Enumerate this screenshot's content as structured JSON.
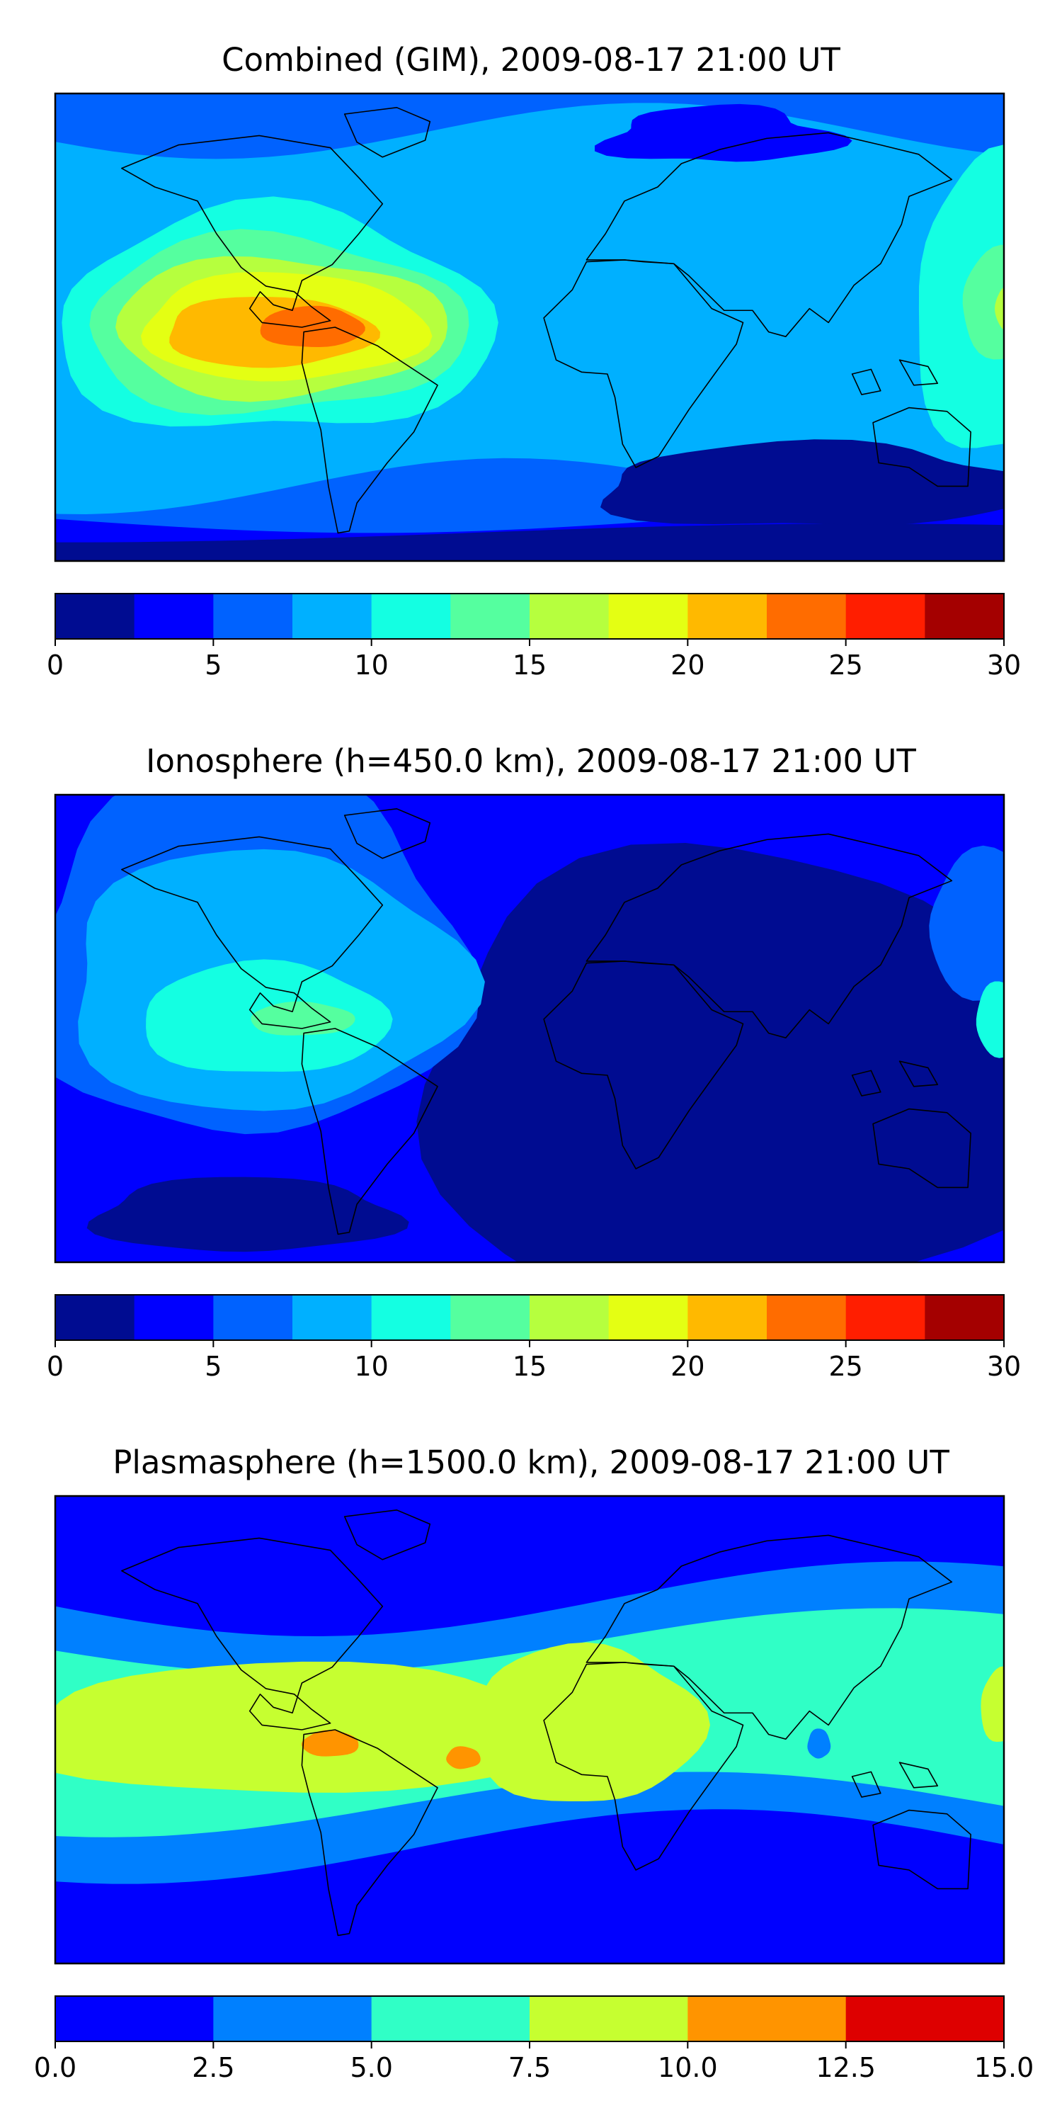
{
  "chart_data": [
    {
      "type": "heatmap",
      "title": "Combined (GIM), 2009-08-17 21:00 UT",
      "xlabel": "",
      "ylabel": "",
      "colorbar": {
        "levels": [
          0,
          2.5,
          5,
          7.5,
          10,
          12.5,
          15,
          17.5,
          20,
          22.5,
          25,
          27.5,
          30
        ],
        "colors": [
          "#000c91",
          "#0000ff",
          "#0062ff",
          "#00b0ff",
          "#14ffe2",
          "#55ff9f",
          "#b6ff3e",
          "#e4ff13",
          "#ffb900",
          "#ff6c00",
          "#ff1e00",
          "#a40000"
        ],
        "tick_values": [
          0,
          5,
          10,
          15,
          20,
          25,
          30
        ],
        "tick_labels": [
          "0",
          "5",
          "10",
          "15",
          "20",
          "25",
          "30"
        ]
      },
      "background_level": 2
    },
    {
      "type": "heatmap",
      "title": "Ionosphere  (h=450.0 km), 2009-08-17 21:00 UT",
      "xlabel": "",
      "ylabel": "",
      "colorbar": {
        "levels": [
          0,
          2.5,
          5,
          7.5,
          10,
          12.5,
          15,
          17.5,
          20,
          22.5,
          25,
          27.5,
          30
        ],
        "colors": [
          "#000c91",
          "#0000ff",
          "#0062ff",
          "#00b0ff",
          "#14ffe2",
          "#55ff9f",
          "#b6ff3e",
          "#e4ff13",
          "#ffb900",
          "#ff6c00",
          "#ff1e00",
          "#a40000"
        ],
        "tick_values": [
          0,
          5,
          10,
          15,
          20,
          25,
          30
        ],
        "tick_labels": [
          "0",
          "5",
          "10",
          "15",
          "20",
          "25",
          "30"
        ]
      },
      "background_level": 1
    },
    {
      "type": "heatmap",
      "title": "Plasmasphere (h=1500.0 km), 2009-08-17 21:00 UT",
      "xlabel": "",
      "ylabel": "",
      "colorbar": {
        "levels": [
          0,
          2.5,
          5,
          7.5,
          10,
          12.5,
          15
        ],
        "colors": [
          "#0000ff",
          "#0080ff",
          "#30ffc6",
          "#c6ff30",
          "#ff9400",
          "#de0000"
        ],
        "tick_values": [
          0,
          2.5,
          5,
          7.5,
          10,
          12.5,
          15
        ],
        "tick_labels": [
          "0.0",
          "2.5",
          "5.0",
          "7.5",
          "10.0",
          "12.5",
          "15.0"
        ]
      },
      "background_level": 0
    }
  ]
}
